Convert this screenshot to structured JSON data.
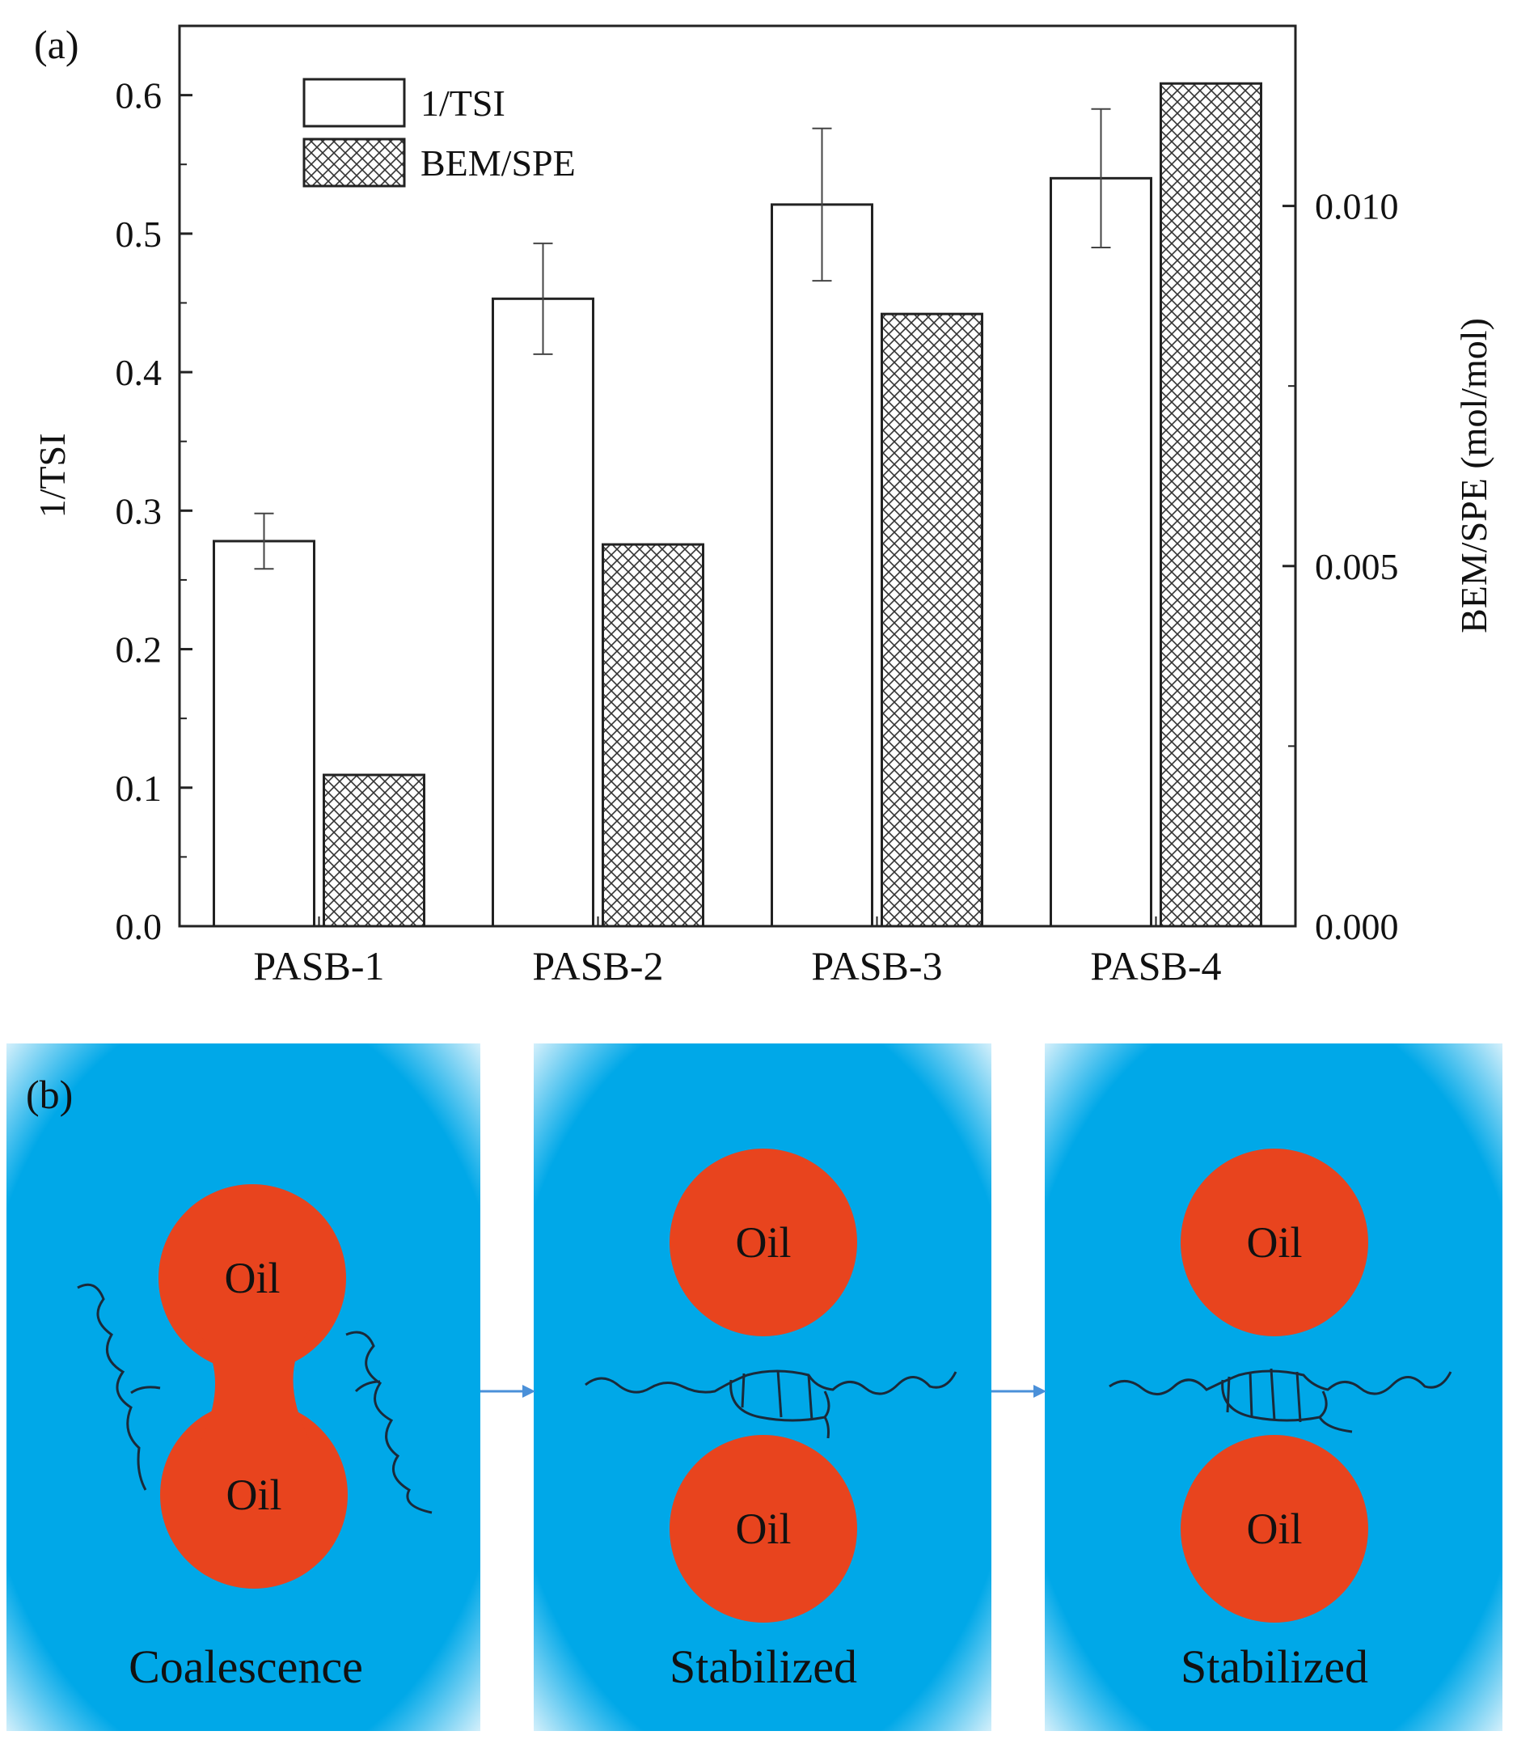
{
  "panel_a": {
    "label": "(a)"
  },
  "panel_b": {
    "label": "(b)",
    "scenes": [
      {
        "caption": "Coalescence",
        "droplet_labels": [
          "Oil",
          "Oil"
        ]
      },
      {
        "caption": "Stabilized",
        "droplet_labels": [
          "Oil",
          "Oil"
        ]
      },
      {
        "caption": "Stabilized",
        "droplet_labels": [
          "Oil",
          "Oil"
        ]
      }
    ],
    "colors": {
      "water": "#00a8e8",
      "water_edge": "#e6f6fd",
      "oil": "#e8441e",
      "chain": "#1a2a3a",
      "arrow": "#4a90d9"
    }
  },
  "chart_data": {
    "type": "bar",
    "categories": [
      "PASB-1",
      "PASB-2",
      "PASB-3",
      "PASB-4"
    ],
    "series": [
      {
        "name": "1/TSI",
        "axis": "left",
        "values": [
          0.278,
          0.453,
          0.521,
          0.54
        ],
        "errors": [
          0.02,
          0.04,
          0.055,
          0.05
        ],
        "pattern": "open"
      },
      {
        "name": "BEM/SPE",
        "axis": "right",
        "values": [
          0.0021,
          0.0053,
          0.0085,
          0.0117
        ],
        "pattern": "crosshatch"
      }
    ],
    "ylabel": "1/TSI",
    "ylabel_right": "BEM/SPE (mol/mol)",
    "ylim": [
      0,
      0.65
    ],
    "ylim_right": [
      0,
      0.0125
    ],
    "yticks": [
      "0.0",
      "0.1",
      "0.2",
      "0.3",
      "0.4",
      "0.5",
      "0.6"
    ],
    "yticks_right": [
      "0.000",
      "0.005",
      "0.010"
    ],
    "legend": [
      "1/TSI",
      "BEM/SPE"
    ],
    "legend_position": "top-left"
  }
}
